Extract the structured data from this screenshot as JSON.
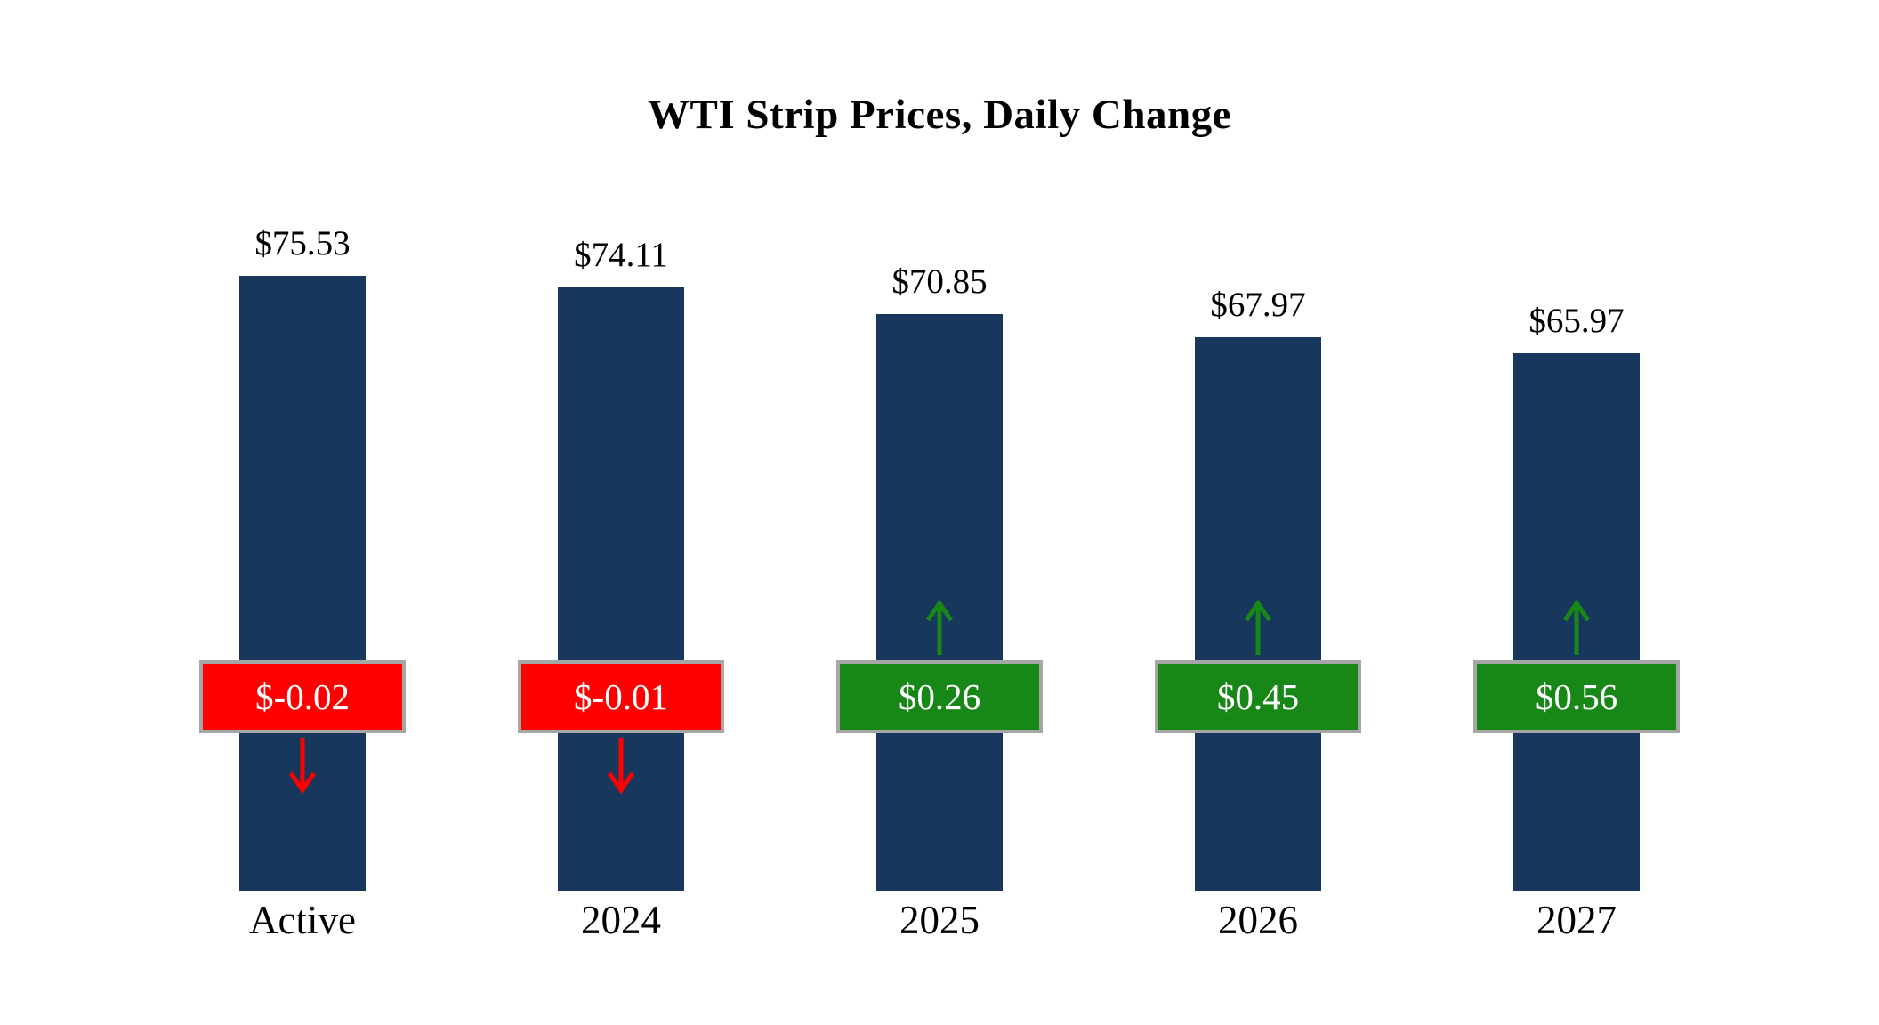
{
  "chart_data": {
    "type": "bar",
    "title": "WTI Strip Prices, Daily Change",
    "categories": [
      "Active",
      "2024",
      "2025",
      "2026",
      "2027"
    ],
    "series": [
      {
        "name": "Strip Price",
        "values": [
          75.53,
          74.11,
          70.85,
          67.97,
          65.97
        ]
      },
      {
        "name": "Daily Change",
        "values": [
          -0.02,
          -0.01,
          0.26,
          0.45,
          0.56
        ]
      }
    ],
    "price_labels": [
      "$75.53",
      "$74.11",
      "$70.85",
      "$67.97",
      "$65.97"
    ],
    "change_labels": [
      "$-0.02",
      "$-0.01",
      "$0.26",
      "$0.45",
      "$0.56"
    ],
    "ylim": [
      0,
      80
    ],
    "grid": false,
    "legend": "none",
    "colors": {
      "bar": "#17375c",
      "negative": "#ff0000",
      "positive": "#178717",
      "badge_border": "#a6a6a6",
      "badge_text": "#ffffff",
      "text": "#000000",
      "background": "#ffffff"
    }
  }
}
